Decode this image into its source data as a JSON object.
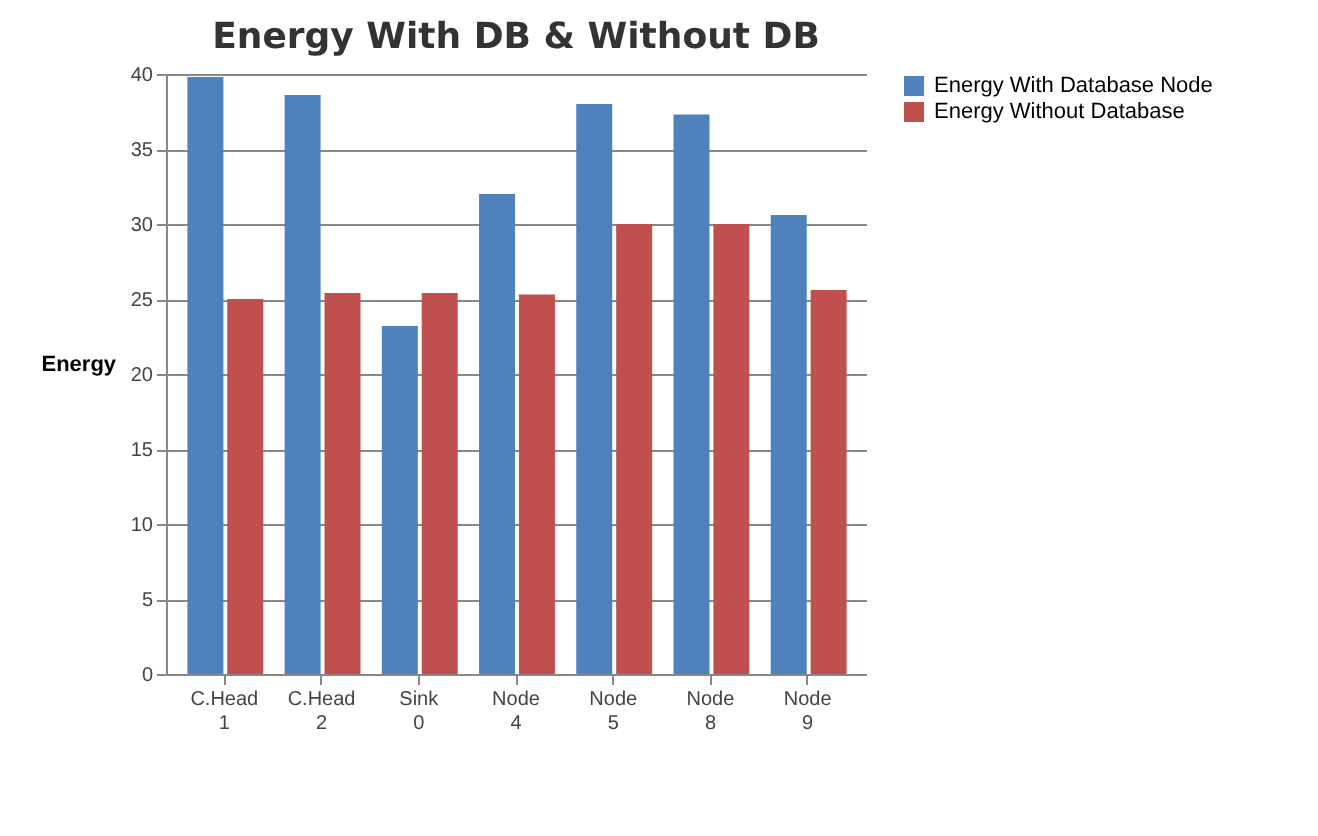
{
  "chart_data": {
    "type": "bar",
    "title": "Energy  With DB & Without DB",
    "ylabel": "Energy",
    "categories": [
      "C.Head 1",
      "C.Head 2",
      "Sink 0",
      "Node 4",
      "Node 5",
      "Node 8",
      "Node 9"
    ],
    "series": [
      {
        "name": "Energy With Database Node",
        "color": "#4f81bd",
        "values": [
          39.8,
          38.6,
          23.2,
          32,
          38,
          37.3,
          30.6
        ]
      },
      {
        "name": "Energy Without Database",
        "color": "#c0504d",
        "values": [
          25,
          25.4,
          25.4,
          25.3,
          30,
          30,
          25.6
        ]
      }
    ],
    "ylim": [
      0,
      40
    ],
    "yticks": [
      0,
      5,
      10,
      15,
      20,
      25,
      30,
      35,
      40
    ],
    "grid": "y",
    "legend": "right"
  }
}
